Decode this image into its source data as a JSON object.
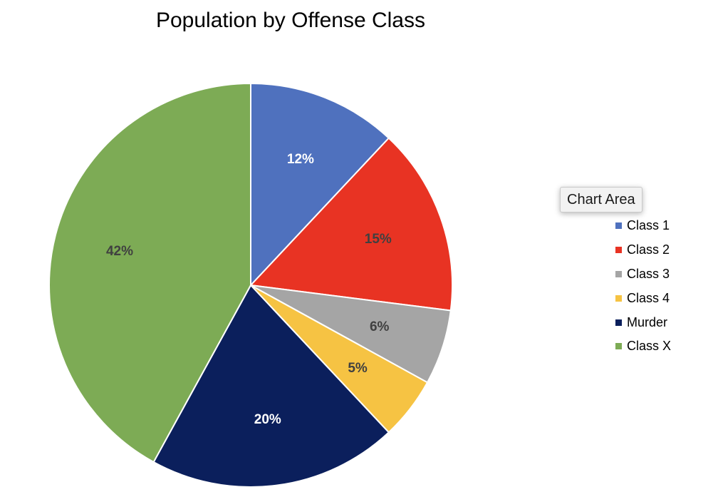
{
  "chart_data": {
    "type": "pie",
    "title": "Population by Offense Class",
    "categories": [
      "Class 1",
      "Class 2",
      "Class 3",
      "Class 4",
      "Murder",
      "Class X"
    ],
    "values": [
      12,
      15,
      6,
      5,
      20,
      42
    ],
    "data_labels": [
      "12%",
      "15%",
      "6%",
      "5%",
      "20%",
      "42%"
    ],
    "colors": [
      "#4f71be",
      "#e83323",
      "#a5a5a5",
      "#f6c343",
      "#0b1f5c",
      "#7dab55"
    ],
    "label_colors": [
      "#ffffff",
      "#404040",
      "#404040",
      "#404040",
      "#ffffff",
      "#404040"
    ],
    "legend": {
      "position": "right",
      "entries": [
        "Class 1",
        "Class 2",
        "Class 3",
        "Class 4",
        "Murder",
        "Class X"
      ]
    }
  },
  "tooltip": {
    "text": "Chart Area"
  }
}
